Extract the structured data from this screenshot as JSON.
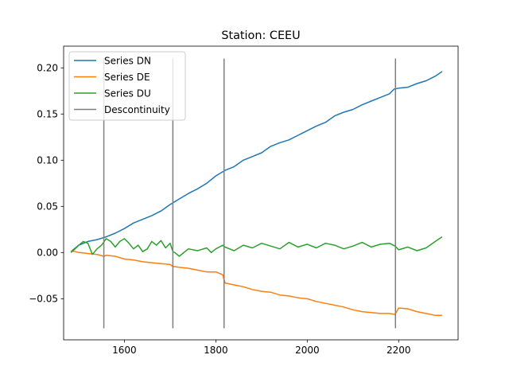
{
  "chart_data": {
    "type": "line",
    "title": "Station: CEEU",
    "xlabel": "",
    "ylabel": "",
    "xlim": [
      1467,
      2330
    ],
    "ylim": [
      -0.0945,
      0.2235
    ],
    "xticks": [
      1600,
      1800,
      2000,
      2200
    ],
    "yticks": [
      -0.05,
      0.0,
      0.05,
      0.1,
      0.15,
      0.2
    ],
    "xtick_labels": [
      "1600",
      "1800",
      "2000",
      "2200"
    ],
    "ytick_labels": [
      "−0.05",
      "0.00",
      "0.05",
      "0.10",
      "0.15",
      "0.20"
    ],
    "grid": false,
    "legend_position": "top-left",
    "series": [
      {
        "name": "Series DN",
        "color": "#1f77b4",
        "x": [
          1483,
          1500,
          1520,
          1540,
          1560,
          1580,
          1600,
          1620,
          1640,
          1660,
          1680,
          1700,
          1720,
          1740,
          1760,
          1780,
          1800,
          1820,
          1840,
          1860,
          1880,
          1900,
          1920,
          1940,
          1960,
          1980,
          2000,
          2020,
          2040,
          2060,
          2080,
          2100,
          2120,
          2140,
          2160,
          2180,
          2190,
          2200,
          2220,
          2240,
          2260,
          2280,
          2295
        ],
        "y": [
          0.001,
          0.008,
          0.012,
          0.014,
          0.017,
          0.021,
          0.026,
          0.032,
          0.036,
          0.04,
          0.045,
          0.052,
          0.058,
          0.064,
          0.069,
          0.075,
          0.083,
          0.089,
          0.093,
          0.1,
          0.104,
          0.108,
          0.115,
          0.119,
          0.122,
          0.127,
          0.132,
          0.137,
          0.141,
          0.148,
          0.152,
          0.155,
          0.16,
          0.164,
          0.168,
          0.172,
          0.177,
          0.178,
          0.179,
          0.183,
          0.186,
          0.191,
          0.196
        ]
      },
      {
        "name": "Series DE",
        "color": "#ff7f0e",
        "x": [
          1483,
          1500,
          1520,
          1540,
          1555,
          1560,
          1580,
          1600,
          1620,
          1640,
          1660,
          1680,
          1700,
          1706,
          1720,
          1740,
          1760,
          1780,
          1800,
          1815,
          1820,
          1840,
          1860,
          1880,
          1900,
          1920,
          1940,
          1960,
          1980,
          2000,
          2020,
          2040,
          2060,
          2080,
          2100,
          2120,
          2140,
          2160,
          2180,
          2192,
          2200,
          2220,
          2240,
          2260,
          2280,
          2295
        ],
        "y": [
          0.002,
          0.0,
          -0.001,
          -0.002,
          -0.004,
          -0.003,
          -0.004,
          -0.007,
          -0.008,
          -0.01,
          -0.011,
          -0.012,
          -0.013,
          -0.015,
          -0.016,
          -0.017,
          -0.019,
          -0.021,
          -0.021,
          -0.024,
          -0.033,
          -0.035,
          -0.037,
          -0.04,
          -0.042,
          -0.043,
          -0.046,
          -0.047,
          -0.049,
          -0.05,
          -0.053,
          -0.055,
          -0.057,
          -0.059,
          -0.062,
          -0.064,
          -0.065,
          -0.066,
          -0.066,
          -0.067,
          -0.06,
          -0.061,
          -0.064,
          -0.066,
          -0.068,
          -0.068
        ]
      },
      {
        "name": "Series DU",
        "color": "#2ca02c",
        "x": [
          1483,
          1490,
          1500,
          1510,
          1520,
          1530,
          1540,
          1550,
          1560,
          1570,
          1580,
          1590,
          1600,
          1610,
          1620,
          1630,
          1640,
          1650,
          1660,
          1670,
          1680,
          1690,
          1700,
          1706,
          1710,
          1720,
          1740,
          1760,
          1780,
          1790,
          1800,
          1815,
          1820,
          1840,
          1860,
          1880,
          1900,
          1920,
          1940,
          1960,
          1980,
          2000,
          2020,
          2040,
          2060,
          2080,
          2100,
          2120,
          2140,
          2160,
          2180,
          2192,
          2200,
          2220,
          2240,
          2260,
          2280,
          2295
        ],
        "y": [
          0.0,
          0.003,
          0.008,
          0.012,
          0.01,
          -0.002,
          0.004,
          0.008,
          0.015,
          0.012,
          0.006,
          0.012,
          0.015,
          0.01,
          0.004,
          0.008,
          0.001,
          0.004,
          0.012,
          0.008,
          0.013,
          0.005,
          0.01,
          0.001,
          0.0,
          -0.004,
          0.004,
          0.002,
          0.005,
          0.0,
          0.004,
          0.008,
          0.006,
          0.002,
          0.008,
          0.005,
          0.01,
          0.007,
          0.004,
          0.011,
          0.006,
          0.009,
          0.005,
          0.01,
          0.008,
          0.004,
          0.007,
          0.011,
          0.006,
          0.009,
          0.01,
          0.007,
          0.003,
          0.006,
          0.002,
          0.005,
          0.012,
          0.017
        ]
      }
    ],
    "discontinuities": {
      "name": "Descontinuity",
      "color": "#7f7f7f",
      "x": [
        1555,
        1706,
        1818,
        2193
      ],
      "y_range": [
        -0.082,
        0.21
      ]
    }
  }
}
